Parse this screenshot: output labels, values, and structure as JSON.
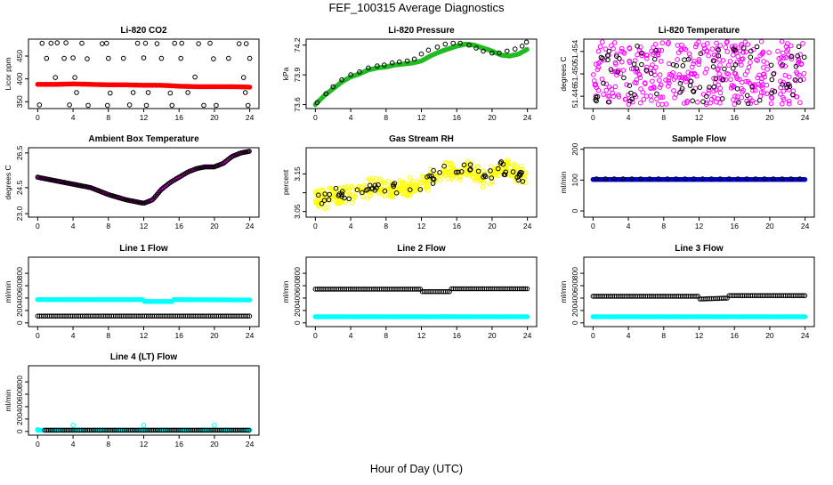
{
  "figure": {
    "title": "FEF_100315  Average Diagnostics",
    "xlabel": "Hour of Day (UTC)"
  },
  "chart_data": [
    {
      "type": "scatter",
      "title": "Li-820 CO2",
      "ylabel": "Licor ppm",
      "xlim": [
        0,
        24
      ],
      "x_ticks": [
        "0",
        "4",
        "8",
        "12",
        "16",
        "20",
        "24"
      ],
      "ylim": [
        335,
        487
      ],
      "y_ticks": [
        350,
        400,
        450
      ],
      "y_tick_labels": [
        "350",
        "400",
        "450"
      ],
      "series": [
        {
          "color": "#ff0000",
          "marker": "filled",
          "kind": "band",
          "x": [
            0,
            2,
            4,
            6,
            8,
            10,
            12,
            14,
            16,
            18,
            20,
            22,
            24
          ],
          "values": [
            388,
            388,
            389,
            388,
            387,
            387,
            386,
            386,
            384,
            383,
            383,
            383,
            382
          ]
        },
        {
          "color": "#000000",
          "marker": "open",
          "kind": "points",
          "x": [
            0.5,
            1.5,
            2.2,
            3.2,
            5.0,
            7.3,
            7.8,
            11.3,
            12.2,
            13.5,
            15.5,
            16.3,
            18.2,
            19.5,
            22.8,
            23.6,
            1.0,
            3.0,
            4.0,
            5.6,
            8.0,
            9.7,
            12.0,
            14.0,
            16.2,
            19.9,
            21.6,
            24.0,
            2.0,
            4.2,
            17.8,
            23.3,
            4.4,
            8.2,
            10.8,
            12.5,
            15.0,
            17.0,
            23.5,
            0.2,
            3.6,
            5.7,
            7.9,
            10.4,
            12.3,
            15.2,
            18.8,
            20.2,
            23.8
          ],
          "values": [
            478,
            478,
            479,
            479,
            478,
            477,
            478,
            478,
            478,
            477,
            478,
            478,
            477,
            478,
            477,
            477,
            445,
            445,
            446,
            444,
            445,
            445,
            446,
            445,
            445,
            444,
            445,
            445,
            403,
            403,
            404,
            403,
            370,
            369,
            370,
            370,
            369,
            370,
            370,
            343,
            343,
            342,
            342,
            343,
            342,
            342,
            342,
            342,
            342
          ]
        }
      ]
    },
    {
      "type": "scatter",
      "title": "Li-820 Pressure",
      "ylabel": "kPa",
      "xlim": [
        0,
        24
      ],
      "x_ticks": [
        "0",
        "4",
        "8",
        "12",
        "16",
        "20",
        "24"
      ],
      "ylim": [
        73.56,
        74.26
      ],
      "y_ticks": [
        73.6,
        73.9,
        74.2
      ],
      "y_tick_labels": [
        "73.6",
        "73.9",
        "74.2"
      ],
      "series": [
        {
          "color": "#22bb22",
          "marker": "filled",
          "kind": "line",
          "x": [
            0,
            1,
            2,
            3,
            4,
            5,
            6,
            7,
            8,
            9,
            10,
            11,
            12,
            13,
            14,
            15,
            16,
            17,
            18,
            19,
            20,
            21,
            22,
            23,
            24
          ],
          "values": [
            73.6,
            73.69,
            73.76,
            73.83,
            73.88,
            73.91,
            73.95,
            73.97,
            73.98,
            74.0,
            74.01,
            74.02,
            74.04,
            74.09,
            74.13,
            74.16,
            74.19,
            74.21,
            74.2,
            74.17,
            74.14,
            74.1,
            74.09,
            74.11,
            74.16
          ]
        },
        {
          "color": "#000000",
          "marker": "open",
          "kind": "points",
          "x": [
            0.2,
            1.2,
            2.0,
            3.0,
            4.0,
            5.0,
            6.0,
            7.0,
            7.8,
            8.7,
            9.5,
            10.4,
            11.2,
            12.0,
            12.8,
            13.8,
            14.7,
            15.6,
            16.4,
            17.4,
            18.2,
            19.0,
            20.0,
            20.8,
            21.7,
            22.6,
            23.4,
            23.9
          ],
          "values": [
            73.62,
            73.71,
            73.78,
            73.85,
            73.9,
            73.93,
            73.97,
            73.99,
            74.0,
            74.02,
            74.03,
            74.04,
            74.06,
            74.11,
            74.15,
            74.18,
            74.21,
            74.22,
            74.22,
            74.2,
            74.17,
            74.14,
            74.12,
            74.12,
            74.14,
            74.16,
            74.19,
            74.23
          ]
        }
      ]
    },
    {
      "type": "scatter",
      "title": "Li-820 Temperature",
      "ylabel": "degrees C",
      "xlim": [
        0,
        24
      ],
      "x_ticks": [
        "0",
        "4",
        "8",
        "12",
        "16",
        "20",
        "24"
      ],
      "ylim": [
        51.4438,
        51.4562
      ],
      "y_ticks": [
        51.446,
        51.45,
        51.454
      ],
      "y_tick_labels": [
        "51.446",
        "51.450",
        "51.454"
      ],
      "series": [
        {
          "color": "#ff00ff",
          "marker": "open",
          "kind": "noise",
          "x": [
            0,
            24
          ],
          "values": [
            51.4445,
            51.4558
          ],
          "count": 380
        },
        {
          "color": "#000000",
          "marker": "open",
          "kind": "noise",
          "x": [
            0,
            24
          ],
          "values": [
            51.4447,
            51.4553
          ],
          "count": 90
        }
      ]
    },
    {
      "type": "scatter",
      "title": "Ambient Box Temperature",
      "ylabel": "degrees C",
      "xlim": [
        0,
        24
      ],
      "x_ticks": [
        "0",
        "4",
        "8",
        "12",
        "16",
        "20",
        "24"
      ],
      "ylim": [
        22.8,
        26.8
      ],
      "y_ticks": [
        23.0,
        24.5,
        26.5
      ],
      "y_tick_labels": [
        "23.0",
        "24.5",
        "26.5"
      ],
      "series": [
        {
          "color": "#ff00ff",
          "marker": "filled",
          "kind": "line",
          "x": [
            0,
            2,
            4,
            6,
            7,
            8,
            10,
            11,
            12,
            13,
            14,
            15,
            16,
            17,
            18,
            19,
            20,
            21,
            22,
            23,
            24
          ],
          "values": [
            25.1,
            24.9,
            24.7,
            24.5,
            24.3,
            24.1,
            23.8,
            23.7,
            23.6,
            23.8,
            24.4,
            24.8,
            25.1,
            25.4,
            25.6,
            25.7,
            25.7,
            25.9,
            26.3,
            26.5,
            26.6
          ]
        },
        {
          "color": "#000000",
          "marker": "open",
          "kind": "line",
          "x": [
            0,
            2,
            4,
            6,
            7,
            8,
            10,
            11,
            12,
            13,
            14,
            15,
            16,
            17,
            18,
            19,
            20,
            21,
            22,
            23,
            24
          ],
          "values": [
            25.1,
            24.9,
            24.7,
            24.5,
            24.3,
            24.1,
            23.8,
            23.7,
            23.6,
            23.8,
            24.4,
            24.8,
            25.1,
            25.4,
            25.6,
            25.7,
            25.7,
            25.9,
            26.3,
            26.5,
            26.6
          ]
        }
      ]
    },
    {
      "type": "scatter",
      "title": "Gas Stream RH",
      "ylabel": "percent",
      "xlim": [
        0,
        24
      ],
      "x_ticks": [
        "0",
        "4",
        "8",
        "12",
        "16",
        "20",
        "24"
      ],
      "ylim": [
        3.035,
        3.22
      ],
      "y_ticks": [
        3.05,
        3.1,
        3.15
      ],
      "y_tick_labels": [
        "3.05",
        "",
        "3.15"
      ],
      "series": [
        {
          "color": "#ffff00",
          "marker": "open",
          "kind": "cloud",
          "x": [
            0,
            2,
            4,
            6,
            8,
            10,
            12,
            13,
            14,
            15,
            16,
            17,
            18,
            19,
            20,
            21,
            22,
            23,
            24
          ],
          "values": [
            3.08,
            3.09,
            3.1,
            3.11,
            3.11,
            3.11,
            3.12,
            3.14,
            3.15,
            3.16,
            3.15,
            3.17,
            3.15,
            3.14,
            3.15,
            3.17,
            3.16,
            3.15,
            3.14
          ],
          "spread": 0.03,
          "count": 420
        },
        {
          "color": "#000000",
          "marker": "open",
          "kind": "cloud",
          "x": [
            0,
            2,
            4,
            6,
            8,
            10,
            12,
            13,
            14,
            15,
            16,
            17,
            18,
            19,
            20,
            21,
            22,
            23,
            24
          ],
          "values": [
            3.08,
            3.09,
            3.1,
            3.11,
            3.11,
            3.11,
            3.12,
            3.14,
            3.15,
            3.16,
            3.15,
            3.17,
            3.15,
            3.14,
            3.15,
            3.17,
            3.16,
            3.15,
            3.14
          ],
          "spread": 0.022,
          "count": 70
        }
      ]
    },
    {
      "type": "scatter",
      "title": "Sample Flow",
      "ylabel": "ml/min",
      "xlim": [
        0,
        24
      ],
      "x_ticks": [
        "0",
        "4",
        "8",
        "12",
        "16",
        "20",
        "24"
      ],
      "ylim": [
        -20,
        205
      ],
      "y_ticks": [
        0,
        100,
        200
      ],
      "y_tick_labels": [
        "0",
        "100",
        "200"
      ],
      "series": [
        {
          "color": "#0000cc",
          "marker": "filled",
          "kind": "band",
          "x": [
            0,
            24
          ],
          "values": [
            102,
            102
          ]
        },
        {
          "color": "#000000",
          "marker": "open",
          "kind": "points",
          "x": [
            0.4,
            1.4,
            2.4,
            3.4,
            4.4,
            5.4,
            6.4,
            7.4,
            8.4,
            9.4,
            10.4,
            11.4,
            12.4,
            13.4,
            14.4,
            15.4,
            16.4,
            17.4,
            18.4,
            19.4,
            20.4,
            21.4,
            22.4,
            23.4
          ],
          "values": [
            104,
            104,
            104,
            104,
            104,
            104,
            104,
            104,
            104,
            104,
            104,
            104,
            104,
            104,
            104,
            104,
            104,
            104,
            104,
            104,
            104,
            104,
            104,
            104
          ]
        }
      ]
    },
    {
      "type": "scatter",
      "title": "Line 1 Flow",
      "ylabel": "ml/min",
      "xlim": [
        0,
        24
      ],
      "x_ticks": [
        "0",
        "4",
        "8",
        "12",
        "16",
        "20",
        "24"
      ],
      "ylim": [
        -60,
        1060
      ],
      "y_ticks": [
        0,
        200,
        400,
        600,
        800
      ],
      "y_tick_labels": [
        "0",
        "200",
        "400",
        "600",
        "800"
      ],
      "series": [
        {
          "color": "#00ffff",
          "marker": "filled",
          "kind": "band",
          "x": [
            0,
            12,
            12.1,
            15.3,
            15.4,
            24
          ],
          "values": [
            375,
            375,
            345,
            345,
            375,
            370
          ]
        },
        {
          "color": "#000000",
          "marker": "open",
          "kind": "band",
          "x": [
            0,
            24
          ],
          "values": [
            110,
            110
          ]
        }
      ]
    },
    {
      "type": "scatter",
      "title": "Line 2 Flow",
      "ylabel": "ml/min",
      "xlim": [
        0,
        24
      ],
      "x_ticks": [
        "0",
        "4",
        "8",
        "12",
        "16",
        "20",
        "24"
      ],
      "ylim": [
        -60,
        1060
      ],
      "y_ticks": [
        0,
        200,
        400,
        600,
        800
      ],
      "y_tick_labels": [
        "0",
        "200",
        "400",
        "600",
        "800"
      ],
      "series": [
        {
          "color": "#00ffff",
          "marker": "filled",
          "kind": "band",
          "x": [
            0,
            24
          ],
          "values": [
            100,
            100
          ]
        },
        {
          "color": "#000000",
          "marker": "open",
          "kind": "band",
          "x": [
            0,
            12,
            12.1,
            15.3,
            15.4,
            24
          ],
          "values": [
            545,
            545,
            505,
            505,
            550,
            550
          ]
        }
      ]
    },
    {
      "type": "scatter",
      "title": "Line 3 Flow",
      "ylabel": "ml/min",
      "xlim": [
        0,
        24
      ],
      "x_ticks": [
        "0",
        "4",
        "8",
        "12",
        "16",
        "20",
        "24"
      ],
      "ylim": [
        -60,
        1060
      ],
      "y_ticks": [
        0,
        200,
        400,
        600,
        800
      ],
      "y_tick_labels": [
        "0",
        "200",
        "400",
        "600",
        "800"
      ],
      "series": [
        {
          "color": "#00ffff",
          "marker": "filled",
          "kind": "band",
          "x": [
            0,
            24
          ],
          "values": [
            100,
            100
          ]
        },
        {
          "color": "#000000",
          "marker": "open",
          "kind": "band",
          "x": [
            0,
            12,
            12.1,
            15.3,
            15.4,
            24
          ],
          "values": [
            430,
            430,
            385,
            400,
            440,
            440
          ]
        }
      ]
    },
    {
      "type": "scatter",
      "title": "Line 4 (LT) Flow",
      "ylabel": "ml/min",
      "xlim": [
        0,
        24
      ],
      "x_ticks": [
        "0",
        "4",
        "8",
        "12",
        "16",
        "20",
        "24"
      ],
      "ylim": [
        -60,
        1060
      ],
      "y_ticks": [
        0,
        200,
        400,
        600,
        800
      ],
      "y_tick_labels": [
        "0",
        "200",
        "400",
        "600",
        "800"
      ],
      "series": [
        {
          "color": "#00ffff",
          "marker": "filled",
          "kind": "band",
          "x": [
            0,
            24
          ],
          "values": [
            20,
            20
          ]
        },
        {
          "color": "#00ffff",
          "marker": "open",
          "kind": "points",
          "x": [
            4,
            12,
            20,
            0
          ],
          "values": [
            100,
            100,
            100,
            30
          ]
        },
        {
          "color": "#000000",
          "marker": "open",
          "kind": "band",
          "x": [
            0.8,
            24
          ],
          "values": [
            20,
            20
          ]
        }
      ]
    }
  ]
}
